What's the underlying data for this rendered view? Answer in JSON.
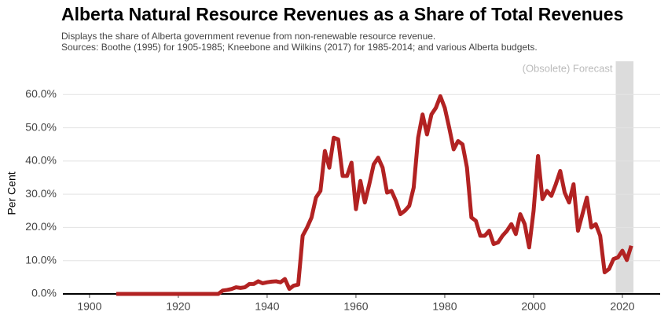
{
  "chart_data": {
    "type": "line",
    "title": "Alberta Natural Resource Revenues as a Share of Total Revenues",
    "subtitle": "Displays the share of Alberta government revenue from non-renewable resource revenue.",
    "source": "Sources: Boothe (1995) for 1905-1985; Kneebone and Wilkins (2017) for 1985-2014; and various Alberta budgets.",
    "ylabel": "Per Cent",
    "annotation": "(Obsolete) Forecast",
    "forecast_range": [
      2018.5,
      2022.5
    ],
    "color": "#b22222",
    "x": [
      1906,
      1907,
      1908,
      1909,
      1910,
      1911,
      1912,
      1913,
      1914,
      1915,
      1916,
      1917,
      1918,
      1919,
      1920,
      1921,
      1922,
      1923,
      1924,
      1925,
      1926,
      1927,
      1928,
      1929,
      1930,
      1931,
      1932,
      1933,
      1934,
      1935,
      1936,
      1937,
      1938,
      1939,
      1940,
      1941,
      1942,
      1943,
      1944,
      1945,
      1946,
      1947,
      1948,
      1949,
      1950,
      1951,
      1952,
      1953,
      1954,
      1955,
      1956,
      1957,
      1958,
      1959,
      1960,
      1961,
      1962,
      1963,
      1964,
      1965,
      1966,
      1967,
      1968,
      1969,
      1970,
      1971,
      1972,
      1973,
      1974,
      1975,
      1976,
      1977,
      1978,
      1979,
      1980,
      1981,
      1982,
      1983,
      1984,
      1985,
      1986,
      1987,
      1988,
      1989,
      1990,
      1991,
      1992,
      1993,
      1994,
      1995,
      1996,
      1997,
      1998,
      1999,
      2000,
      2001,
      2002,
      2003,
      2004,
      2005,
      2006,
      2007,
      2008,
      2009,
      2010,
      2011,
      2012,
      2013,
      2014,
      2015,
      2016,
      2017,
      2018,
      2019,
      2020,
      2021,
      2022
    ],
    "values": [
      0,
      0,
      0,
      0,
      0,
      0,
      0,
      0,
      0,
      0,
      0,
      0,
      0,
      0,
      0,
      0,
      0,
      0,
      0,
      0,
      0,
      0,
      0,
      0,
      1,
      1.2,
      1.5,
      2,
      1.8,
      2,
      3,
      3,
      3.8,
      3.2,
      3.5,
      3.7,
      3.8,
      3.5,
      4.5,
      1.5,
      2.5,
      2.8,
      17.5,
      20,
      23,
      29,
      31,
      43,
      38,
      47,
      46.5,
      35.5,
      35.5,
      39.5,
      25.5,
      34,
      27.5,
      33,
      39,
      41,
      38,
      30.5,
      31,
      28,
      24,
      25,
      26.5,
      32,
      47,
      54,
      48,
      54,
      56,
      59.5,
      56,
      50,
      43.5,
      46,
      45,
      38,
      23,
      22,
      17.5,
      17.5,
      19,
      15,
      15.5,
      17.5,
      19,
      21,
      18,
      24,
      21,
      14,
      25,
      41.5,
      28.5,
      31,
      29.5,
      33,
      37,
      30.5,
      27.5,
      33,
      19,
      24,
      29,
      20,
      21,
      17.5,
      6.5,
      7.5,
      10.5,
      11,
      13,
      10.2,
      14.5
    ],
    "xlim": [
      1894,
      2028.5
    ],
    "xticks": [
      1900,
      1920,
      1940,
      1960,
      1980,
      2000,
      2020
    ],
    "ylim": [
      0,
      70
    ],
    "yticks": [
      {
        "value": 0,
        "label": "0.0%"
      },
      {
        "value": 10,
        "label": "10.0%"
      },
      {
        "value": 20,
        "label": "20.0%"
      },
      {
        "value": 30,
        "label": "30.0%"
      },
      {
        "value": 40,
        "label": "40.0%"
      },
      {
        "value": 50,
        "label": "50.0%"
      },
      {
        "value": 60,
        "label": "60.0%"
      }
    ],
    "grid": true
  }
}
